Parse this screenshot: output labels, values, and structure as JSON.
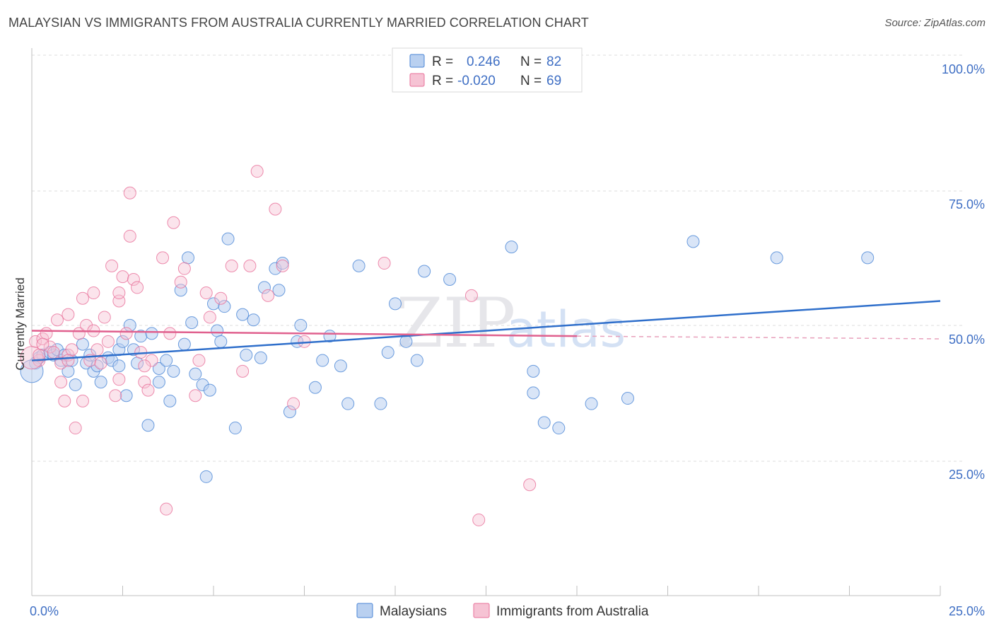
{
  "title": "MALAYSIAN VS IMMIGRANTS FROM AUSTRALIA CURRENTLY MARRIED CORRELATION CHART",
  "source": "Source: ZipAtlas.com",
  "watermark": {
    "zip": "ZIP",
    "atlas": "atlas"
  },
  "colors": {
    "blue": "#4a86d6",
    "blue_fill": "#b9d0f0",
    "pink": "#e8709a",
    "pink_fill": "#f6c3d4",
    "axis_text": "#3f6fc4"
  },
  "legend": {
    "rows": [
      {
        "r_label": "R =",
        "r_value": "0.246",
        "n_label": "N =",
        "n_value": "82"
      },
      {
        "r_label": "R =",
        "r_value": "-0.020",
        "n_label": "N =",
        "n_value": "69"
      }
    ]
  },
  "chart_data": {
    "type": "scatter",
    "title": "MALAYSIAN VS IMMIGRANTS FROM AUSTRALIA CURRENTLY MARRIED CORRELATION CHART",
    "xlabel": "",
    "ylabel": "Currently Married",
    "xlim": [
      0,
      25
    ],
    "ylim": [
      0,
      105
    ],
    "x_tick_labels": [
      "0.0%",
      "25.0%"
    ],
    "y_tick_labels": [
      "100.0%",
      "75.0%",
      "50.0%",
      "25.0%"
    ],
    "y_ticks": [
      100,
      75,
      50,
      25
    ],
    "grid": true,
    "legend_position": "bottom",
    "series": [
      {
        "name": "Malaysians",
        "color": "#4a86d6",
        "trend": {
          "x": [
            0,
            25
          ],
          "y": [
            46.0,
            57.0
          ]
        },
        "points": [
          [
            0.1,
            45.5
          ],
          [
            0.2,
            46.5
          ],
          [
            0.3,
            47.0
          ],
          [
            0.5,
            47.5
          ],
          [
            0.6,
            47.0
          ],
          [
            0.7,
            48.0
          ],
          [
            0.8,
            46.0
          ],
          [
            0.9,
            47.0
          ],
          [
            1.0,
            44.0
          ],
          [
            1.1,
            46.0
          ],
          [
            1.2,
            41.5
          ],
          [
            1.4,
            49.0
          ],
          [
            1.5,
            45.5
          ],
          [
            1.6,
            47.0
          ],
          [
            1.7,
            44.0
          ],
          [
            1.8,
            45.0
          ],
          [
            1.9,
            42.0
          ],
          [
            2.1,
            46.5
          ],
          [
            2.2,
            46.0
          ],
          [
            2.4,
            45.0
          ],
          [
            2.4,
            48.0
          ],
          [
            2.5,
            49.5
          ],
          [
            2.6,
            39.5
          ],
          [
            2.7,
            52.5
          ],
          [
            2.8,
            48.0
          ],
          [
            2.9,
            45.5
          ],
          [
            3.0,
            50.5
          ],
          [
            3.2,
            34.0
          ],
          [
            3.3,
            51.0
          ],
          [
            3.5,
            44.5
          ],
          [
            3.5,
            42.0
          ],
          [
            3.7,
            46.0
          ],
          [
            3.8,
            38.5
          ],
          [
            3.9,
            44.0
          ],
          [
            4.1,
            59.0
          ],
          [
            4.2,
            49.0
          ],
          [
            4.3,
            65.0
          ],
          [
            4.4,
            53.0
          ],
          [
            4.5,
            43.5
          ],
          [
            4.7,
            41.5
          ],
          [
            4.8,
            24.5
          ],
          [
            4.9,
            40.5
          ],
          [
            5.0,
            56.5
          ],
          [
            5.1,
            51.5
          ],
          [
            5.2,
            49.5
          ],
          [
            5.3,
            56.0
          ],
          [
            5.4,
            68.5
          ],
          [
            5.6,
            33.5
          ],
          [
            5.8,
            54.5
          ],
          [
            5.9,
            47.0
          ],
          [
            6.1,
            53.5
          ],
          [
            6.3,
            46.5
          ],
          [
            6.4,
            59.5
          ],
          [
            6.7,
            63.0
          ],
          [
            6.8,
            59.0
          ],
          [
            6.9,
            64.0
          ],
          [
            7.1,
            36.5
          ],
          [
            7.3,
            49.5
          ],
          [
            7.4,
            52.5
          ],
          [
            7.8,
            41.0
          ],
          [
            8.0,
            46.0
          ],
          [
            8.2,
            50.5
          ],
          [
            8.5,
            45.0
          ],
          [
            8.7,
            38.0
          ],
          [
            9.0,
            63.5
          ],
          [
            9.6,
            38.0
          ],
          [
            9.8,
            47.5
          ],
          [
            10.0,
            56.5
          ],
          [
            10.3,
            49.5
          ],
          [
            10.6,
            46.0
          ],
          [
            10.8,
            62.5
          ],
          [
            11.5,
            61.0
          ],
          [
            13.2,
            67.0
          ],
          [
            13.8,
            44.0
          ],
          [
            13.8,
            40.0
          ],
          [
            14.1,
            34.5
          ],
          [
            14.5,
            33.5
          ],
          [
            15.4,
            38.0
          ],
          [
            16.4,
            39.0
          ],
          [
            18.2,
            68.0
          ],
          [
            20.5,
            65.0
          ],
          [
            23.0,
            65.0
          ],
          [
            0.0,
            44.0
          ]
        ]
      },
      {
        "name": "Immigrants from Australia",
        "color": "#e8709a",
        "trend": {
          "x": [
            0,
            15
          ],
          "y": [
            51.5,
            50.5
          ]
        },
        "trend_dashed": {
          "x": [
            15,
            25
          ],
          "y": [
            50.5,
            50.0
          ]
        },
        "points": [
          [
            0.1,
            49.5
          ],
          [
            0.2,
            46.0
          ],
          [
            0.3,
            50.0
          ],
          [
            0.4,
            51.0
          ],
          [
            0.5,
            48.5
          ],
          [
            0.6,
            47.5
          ],
          [
            0.7,
            53.5
          ],
          [
            0.8,
            45.5
          ],
          [
            0.8,
            42.0
          ],
          [
            0.9,
            38.5
          ],
          [
            1.0,
            47.0
          ],
          [
            1.0,
            54.5
          ],
          [
            1.1,
            48.0
          ],
          [
            1.2,
            33.5
          ],
          [
            1.3,
            51.0
          ],
          [
            1.4,
            57.5
          ],
          [
            1.4,
            38.5
          ],
          [
            1.5,
            52.5
          ],
          [
            1.6,
            46.0
          ],
          [
            1.7,
            51.5
          ],
          [
            1.7,
            58.5
          ],
          [
            1.8,
            48.0
          ],
          [
            1.9,
            45.5
          ],
          [
            2.0,
            54.0
          ],
          [
            2.1,
            49.5
          ],
          [
            2.2,
            63.5
          ],
          [
            2.3,
            39.5
          ],
          [
            2.4,
            57.0
          ],
          [
            2.4,
            58.5
          ],
          [
            2.5,
            61.5
          ],
          [
            2.6,
            51.0
          ],
          [
            2.7,
            77.0
          ],
          [
            2.7,
            69.0
          ],
          [
            2.8,
            61.0
          ],
          [
            2.9,
            59.5
          ],
          [
            3.0,
            47.5
          ],
          [
            3.1,
            42.0
          ],
          [
            3.2,
            40.5
          ],
          [
            3.3,
            46.0
          ],
          [
            3.6,
            65.0
          ],
          [
            3.7,
            18.5
          ],
          [
            3.8,
            51.0
          ],
          [
            3.9,
            71.5
          ],
          [
            4.1,
            60.5
          ],
          [
            4.2,
            63.0
          ],
          [
            4.5,
            39.5
          ],
          [
            4.6,
            46.0
          ],
          [
            4.8,
            58.5
          ],
          [
            4.9,
            54.0
          ],
          [
            5.2,
            57.5
          ],
          [
            5.5,
            63.5
          ],
          [
            5.8,
            44.0
          ],
          [
            6.0,
            63.5
          ],
          [
            6.2,
            81.0
          ],
          [
            6.5,
            58.0
          ],
          [
            6.7,
            74.0
          ],
          [
            6.9,
            63.5
          ],
          [
            7.2,
            38.0
          ],
          [
            7.5,
            49.5
          ],
          [
            9.7,
            64.0
          ],
          [
            12.1,
            58.0
          ],
          [
            12.3,
            16.5
          ],
          [
            13.7,
            23.0
          ],
          [
            0.0,
            46.5
          ],
          [
            0.3,
            49.0
          ],
          [
            0.2,
            47.0
          ],
          [
            1.0,
            46.0
          ],
          [
            2.4,
            42.5
          ],
          [
            3.1,
            45.0
          ]
        ]
      }
    ]
  },
  "bottom_legend": [
    {
      "label": "Malaysians"
    },
    {
      "label": "Immigrants from Australia"
    }
  ]
}
